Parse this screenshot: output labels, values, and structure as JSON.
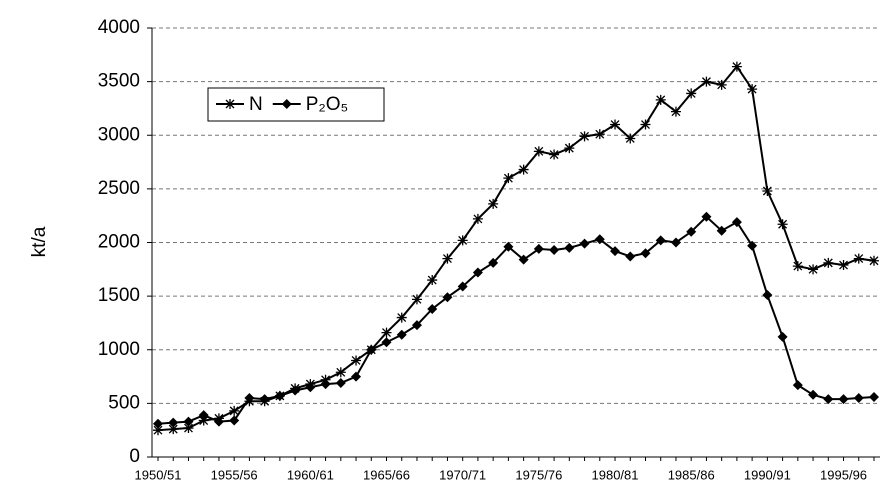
{
  "chart_data": {
    "type": "line",
    "y_label": "kt/a",
    "categories": [
      "1950/51",
      null,
      null,
      null,
      null,
      "1955/56",
      null,
      null,
      null,
      null,
      "1960/61",
      null,
      null,
      null,
      null,
      "1965/66",
      null,
      null,
      null,
      null,
      "1970/71",
      null,
      null,
      null,
      null,
      "1975/76",
      null,
      null,
      null,
      null,
      "1980/81",
      null,
      null,
      null,
      null,
      "1985/86",
      null,
      null,
      null,
      null,
      "1990/91",
      null,
      null,
      null,
      null,
      "1995/96",
      null,
      null
    ],
    "series": [
      {
        "name": "N",
        "color": "#000000",
        "marker": "star",
        "values": [
          250,
          260,
          270,
          340,
          360,
          430,
          520,
          520,
          570,
          640,
          680,
          720,
          790,
          900,
          1000,
          1160,
          1300,
          1470,
          1650,
          1850,
          2020,
          2220,
          2360,
          2600,
          2680,
          2850,
          2820,
          2880,
          2990,
          3010,
          3100,
          2970,
          3100,
          3330,
          3220,
          3390,
          3500,
          3470,
          3640,
          3430,
          2480,
          2170,
          1780,
          1750,
          1810,
          1790,
          1850,
          1830
        ]
      },
      {
        "name": "P₂O₅",
        "color": "#000000",
        "marker": "diamond",
        "values": [
          310,
          320,
          330,
          390,
          330,
          340,
          550,
          540,
          570,
          620,
          650,
          680,
          690,
          750,
          1000,
          1070,
          1140,
          1230,
          1380,
          1490,
          1590,
          1720,
          1810,
          1960,
          1840,
          1940,
          1930,
          1950,
          1990,
          2030,
          1920,
          1870,
          1900,
          2020,
          2000,
          2100,
          2240,
          2110,
          2190,
          1970,
          1510,
          1120,
          670,
          580,
          540,
          540,
          550,
          560
        ]
      }
    ],
    "ylim": [
      0,
      4000
    ],
    "yticks": [
      0,
      500,
      1000,
      1500,
      2000,
      2500,
      3000,
      3500,
      4000
    ],
    "grid": true
  }
}
